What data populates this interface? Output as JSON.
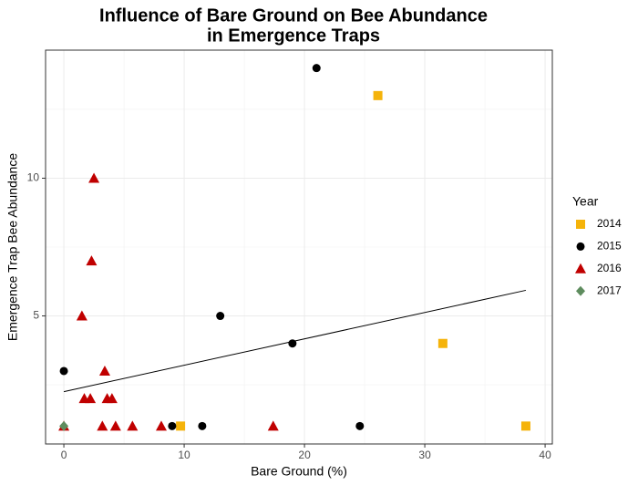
{
  "chart_data": {
    "type": "scatter",
    "title": [
      "Influence of Bare Ground on Bee Abundance",
      "in Emergence Traps"
    ],
    "x_label": "Bare Ground (%)",
    "y_label": "Emergence Trap Bee Abundance",
    "legend_title": "Year",
    "legend_position": "right",
    "grid": true,
    "xlim": [
      -1.52,
      40.6
    ],
    "ylim": [
      0.35,
      14.65
    ],
    "xticks": [
      0,
      10,
      20,
      30,
      40
    ],
    "yticks": [
      5,
      10
    ],
    "minor_xticks": [
      5,
      15,
      25,
      35
    ],
    "minor_yticks": [
      2.5,
      7.5,
      12.5
    ],
    "series": [
      {
        "name": "2014",
        "color": "#f5b30a",
        "marker": "square",
        "x": [
          26.1,
          31.5,
          38.4,
          9.7
        ],
        "y": [
          13,
          4,
          1,
          1
        ]
      },
      {
        "name": "2015",
        "color": "#000000",
        "marker": "circle",
        "x": [
          21,
          13,
          19,
          0,
          9,
          11.5,
          24.6
        ],
        "y": [
          14,
          5,
          4,
          3,
          1,
          1,
          1
        ]
      },
      {
        "name": "2016",
        "color": "#c00000",
        "marker": "triangle",
        "x": [
          2.5,
          2.3,
          1.5,
          3.4,
          1.7,
          2.2,
          3.6,
          4,
          0,
          3.2,
          4.3,
          5.7,
          8.1,
          17.4
        ],
        "y": [
          10,
          7,
          5,
          3,
          2,
          2,
          2,
          2,
          1,
          1,
          1,
          1,
          1,
          1
        ]
      },
      {
        "name": "2017",
        "color": "#5e8c5e",
        "marker": "diamond",
        "x": [
          0
        ],
        "y": [
          1
        ]
      }
    ],
    "trend": {
      "color": "#000000",
      "x": [
        0,
        38.4
      ],
      "y": [
        2.25,
        5.93
      ]
    }
  }
}
